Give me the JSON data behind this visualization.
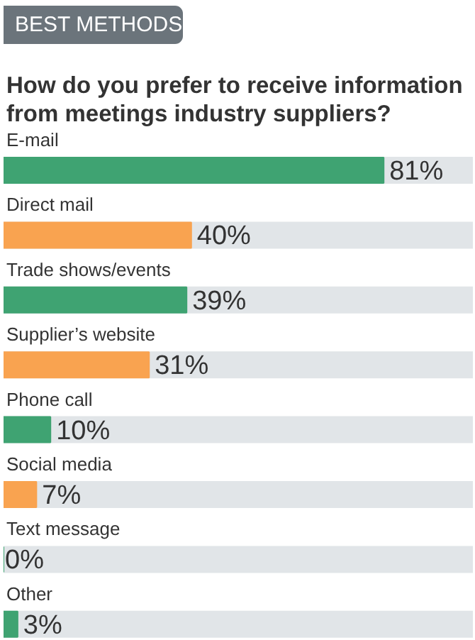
{
  "chart_data": {
    "type": "bar",
    "orientation": "horizontal",
    "title": "BEST METHODS",
    "subtitle": "How do you prefer to receive information from meetings industry suppliers?",
    "categories": [
      "E-mail",
      "Direct mail",
      "Trade shows/events",
      "Supplier’s website",
      "Phone call",
      "Social media",
      "Text message",
      "Other"
    ],
    "values": [
      81,
      40,
      39,
      31,
      10,
      7,
      0,
      3
    ],
    "colors": [
      "#3fa372",
      "#f9a350",
      "#3fa372",
      "#f9a350",
      "#3fa372",
      "#f9a350",
      "#3fa372",
      "#3fa372"
    ],
    "value_labels": [
      "81%",
      "40%",
      "39%",
      "31%",
      "10%",
      "7%",
      "0%",
      "3%"
    ],
    "xlim": [
      0,
      100
    ]
  }
}
